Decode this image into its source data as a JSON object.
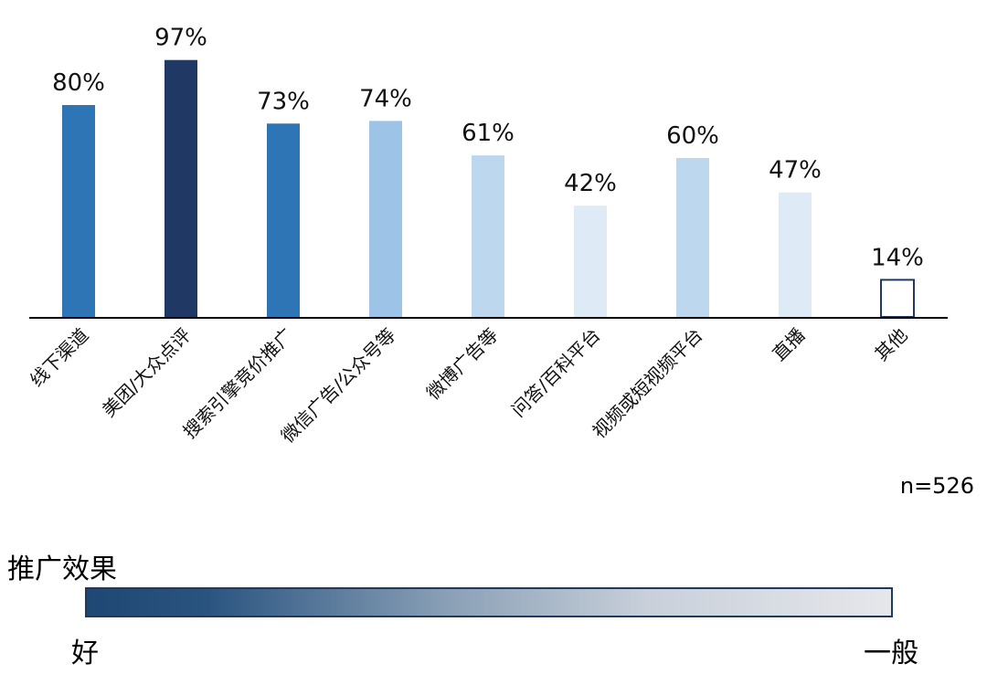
{
  "chart_data": {
    "type": "bar",
    "categories": [
      "线下渠道",
      "美团/大众点评",
      "搜索引擎竞价推广",
      "微信广告/公众号等",
      "微博广告等",
      "问答/百科平台",
      "视频或短视频平台",
      "直播",
      "其他"
    ],
    "values": [
      80,
      97,
      73,
      74,
      61,
      42,
      60,
      47,
      14
    ],
    "value_labels": [
      "80%",
      "97%",
      "73%",
      "74%",
      "61%",
      "42%",
      "60%",
      "47%",
      "14%"
    ],
    "bar_colors": [
      "#2e75b6",
      "#203864",
      "#2e75b6",
      "#9dc3e6",
      "#bdd7ee",
      "#deebf7",
      "#bdd7ee",
      "#deebf7",
      "#ffffff"
    ],
    "bar_outline": [
      "",
      "",
      "",
      "",
      "",
      "",
      "",
      "",
      "#203864"
    ],
    "ylim": [
      0,
      100
    ],
    "grid": false,
    "note": "n=526"
  },
  "legend": {
    "title": "推广效果",
    "left_label": "好",
    "right_label": "一般",
    "gradient_colors": [
      "#1f4774",
      "#e6e7eb"
    ]
  }
}
